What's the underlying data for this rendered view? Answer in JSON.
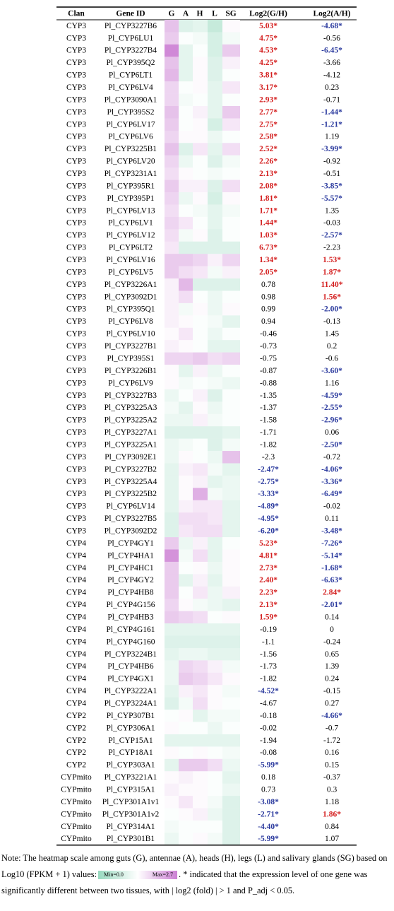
{
  "table": {
    "header": [
      "Clan",
      "Gene ID",
      "G",
      "A",
      "H",
      "L",
      "SG",
      "Log2(G/H)",
      "Log2(A/H)"
    ],
    "rows": [
      [
        "CYP3",
        "Pl_CYP3227B6",
        [
          2.0,
          0.9,
          1.0,
          0.6,
          1.4
        ],
        "5.03*",
        "-4.68*"
      ],
      [
        "CYP3",
        "Pl_CYP6LU1",
        [
          1.9,
          1.3,
          1.2,
          0.8,
          1.2
        ],
        "4.75*",
        "-0.56"
      ],
      [
        "CYP3",
        "Pl_CYP3227B4",
        [
          2.6,
          1.0,
          1.3,
          0.8,
          1.9
        ],
        "4.53*",
        "-6.45*"
      ],
      [
        "CYP3",
        "Pl_CYP395Q2",
        [
          2.0,
          1.0,
          1.4,
          0.9,
          1.5
        ],
        "4.25*",
        "-3.66"
      ],
      [
        "CYP3",
        "Pl_CYP6LT1",
        [
          2.1,
          1.0,
          1.4,
          0.9,
          1.3
        ],
        "3.81*",
        "-4.12"
      ],
      [
        "CYP3",
        "Pl_CYP6LV4",
        [
          1.8,
          1.3,
          1.4,
          1.0,
          1.6
        ],
        "3.17*",
        "0.23"
      ],
      [
        "CYP3",
        "Pl_CYP3090A1",
        [
          1.8,
          1.2,
          1.3,
          1.0,
          1.3
        ],
        "2.93*",
        "-0.71"
      ],
      [
        "CYP3",
        "Pl_CYP395S2",
        [
          2.0,
          1.3,
          1.5,
          1.0,
          1.9
        ],
        "2.77*",
        "-1.44*"
      ],
      [
        "CYP3",
        "Pl_CYP6LV17",
        [
          1.9,
          1.3,
          1.4,
          0.8,
          1.6
        ],
        "2.75*",
        "-1.21*"
      ],
      [
        "CYP3",
        "Pl_CYP6LV6",
        [
          1.8,
          1.4,
          1.4,
          1.1,
          1.3
        ],
        "2.58*",
        "1.19"
      ],
      [
        "CYP3",
        "Pl_CYP3225B1",
        [
          2.0,
          0.9,
          1.6,
          1.0,
          1.7
        ],
        "2.52*",
        "-3.99*"
      ],
      [
        "CYP3",
        "Pl_CYP6LV20",
        [
          1.8,
          1.1,
          1.3,
          0.9,
          1.2
        ],
        "2.26*",
        "-0.92"
      ],
      [
        "CYP3",
        "Pl_CYP3231A1",
        [
          1.7,
          1.4,
          1.3,
          1.2,
          1.3
        ],
        "2.13*",
        "-0.51"
      ],
      [
        "CYP3",
        "Pl_CYP395R1",
        [
          1.9,
          1.5,
          1.5,
          0.9,
          1.7
        ],
        "2.08*",
        "-3.85*"
      ],
      [
        "CYP3",
        "Pl_CYP395P1",
        [
          1.8,
          1.1,
          1.4,
          0.8,
          1.4
        ],
        "1.81*",
        "-5.57*"
      ],
      [
        "CYP3",
        "Pl_CYP6LV13",
        [
          1.7,
          1.3,
          1.2,
          1.0,
          1.2
        ],
        "1.71*",
        "1.35"
      ],
      [
        "CYP3",
        "Pl_CYP6LV1",
        [
          1.8,
          1.6,
          1.3,
          1.0,
          1.3
        ],
        "1.44*",
        "-0.03"
      ],
      [
        "CYP3",
        "Pl_CYP6LV12",
        [
          1.7,
          1.2,
          1.4,
          0.9,
          1.3
        ],
        "1.03*",
        "-2.57*"
      ],
      [
        "CYP3",
        "Pl_CYP6LT2",
        [
          1.6,
          0.9,
          0.9,
          0.9,
          0.9
        ],
        "6.73*",
        "-2.23"
      ],
      [
        "CYP3",
        "Pl_CYP6LV16",
        [
          1.9,
          1.9,
          1.8,
          1.5,
          1.8
        ],
        "1.34*",
        "1.53*"
      ],
      [
        "CYP3",
        "Pl_CYP6LV5",
        [
          1.9,
          1.7,
          1.6,
          1.2,
          1.5
        ],
        "2.05*",
        "1.87*"
      ],
      [
        "CYP3",
        "Pl_CYP3226A1",
        [
          1.5,
          2.1,
          0.9,
          0.9,
          0.9
        ],
        "0.78",
        "11.40*"
      ],
      [
        "CYP3",
        "Pl_CYP3092D1",
        [
          1.5,
          1.7,
          1.3,
          1.1,
          1.3
        ],
        "0.98",
        "1.56*"
      ],
      [
        "CYP3",
        "Pl_CYP395Q1",
        [
          1.5,
          1.2,
          1.4,
          1.1,
          1.4
        ],
        "0.99",
        "-2.00*"
      ],
      [
        "CYP3",
        "Pl_CYP6LV8",
        [
          1.5,
          1.4,
          1.3,
          1.2,
          1.0
        ],
        "0.94",
        "-0.13"
      ],
      [
        "CYP3",
        "Pl_CYP6LV10",
        [
          1.4,
          1.6,
          1.3,
          1.1,
          1.3
        ],
        "-0.46",
        "1.45"
      ],
      [
        "CYP3",
        "Pl_CYP3227B1",
        [
          1.5,
          1.4,
          1.3,
          1.0,
          1.0
        ],
        "-0.73",
        "0.2"
      ],
      [
        "CYP3",
        "Pl_CYP395S1",
        [
          1.8,
          1.8,
          1.9,
          1.7,
          1.8
        ],
        "-0.75",
        "-0.6"
      ],
      [
        "CYP3",
        "Pl_CYP3226B1",
        [
          1.4,
          1.0,
          1.5,
          1.1,
          1.3
        ],
        "-0.87",
        "-3.60*"
      ],
      [
        "CYP3",
        "Pl_CYP6LV9",
        [
          1.4,
          1.2,
          1.3,
          1.2,
          1.1
        ],
        "-0.88",
        "1.16"
      ],
      [
        "CYP3",
        "Pl_CYP3227B3",
        [
          1.1,
          1.3,
          1.5,
          0.9,
          1.3
        ],
        "-1.35",
        "-4.59*"
      ],
      [
        "CYP3",
        "Pl_CYP3225A3",
        [
          1.2,
          1.0,
          1.4,
          1.1,
          1.3
        ],
        "-1.37",
        "-2.55*"
      ],
      [
        "CYP3",
        "Pl_CYP3225A2",
        [
          1.1,
          1.1,
          1.5,
          1.2,
          1.3
        ],
        "-1.58",
        "-2.96*"
      ],
      [
        "CYP3",
        "Pl_CYP3227A1",
        [
          0.9,
          0.9,
          0.9,
          0.9,
          1.0
        ],
        "-1.71",
        "0.06"
      ],
      [
        "CYP3",
        "Pl_CYP3225A1",
        [
          1.1,
          1.2,
          1.3,
          0.9,
          1.2
        ],
        "-1.82",
        "-2.50*"
      ],
      [
        "CYP3",
        "Pl_CYP3092E1",
        [
          1.1,
          1.4,
          1.3,
          1.1,
          2.0
        ],
        "-2.3",
        "-0.72"
      ],
      [
        "CYP3",
        "Pl_CYP3227B2",
        [
          1.0,
          1.5,
          1.6,
          1.2,
          1.0
        ],
        "-2.47*",
        "-4.06*"
      ],
      [
        "CYP3",
        "Pl_CYP3225A4",
        [
          1.0,
          1.4,
          1.5,
          1.0,
          1.1
        ],
        "-2.75*",
        "-3.36*"
      ],
      [
        "CYP3",
        "Pl_CYP3225B2",
        [
          1.0,
          1.4,
          2.2,
          1.2,
          1.1
        ],
        "-3.33*",
        "-6.49*"
      ],
      [
        "CYP3",
        "Pl_CYP6LV14",
        [
          1.0,
          1.5,
          1.6,
          1.6,
          1.0
        ],
        "-4.89*",
        "-0.02"
      ],
      [
        "CYP3",
        "Pl_CYP3227B5",
        [
          0.9,
          1.7,
          1.7,
          1.6,
          1.0
        ],
        "-4.95*",
        "0.11"
      ],
      [
        "CYP3",
        "Pl_CYP3092D2",
        [
          0.9,
          1.6,
          1.7,
          1.7,
          1.0
        ],
        "-6.20*",
        "-3.48*"
      ],
      [
        "CYP4",
        "Pl_CYP4GY1",
        [
          1.9,
          1.1,
          1.5,
          1.0,
          1.3
        ],
        "5.23*",
        "-7.26*"
      ],
      [
        "CYP4",
        "Pl_CYP4HA1",
        [
          2.5,
          1.2,
          1.7,
          1.0,
          1.4
        ],
        "4.81*",
        "-5.14*"
      ],
      [
        "CYP4",
        "Pl_CYP4HC1",
        [
          1.9,
          1.3,
          1.4,
          1.1,
          1.4
        ],
        "2.73*",
        "-1.68*"
      ],
      [
        "CYP4",
        "Pl_CYP4GY2",
        [
          1.9,
          1.0,
          1.5,
          1.0,
          1.4
        ],
        "2.40*",
        "-6.63*"
      ],
      [
        "CYP4",
        "Pl_CYP4HB8",
        [
          1.9,
          1.3,
          1.6,
          1.1,
          1.5
        ],
        "2.23*",
        "2.84*"
      ],
      [
        "CYP4",
        "Pl_CYP4G156",
        [
          1.8,
          1.4,
          1.2,
          1.1,
          1.0
        ],
        "2.13*",
        "-2.01*"
      ],
      [
        "CYP4",
        "Pl_CYP4HB3",
        [
          1.9,
          1.8,
          1.7,
          1.3,
          1.4
        ],
        "1.59*",
        "0.14"
      ],
      [
        "CYP4",
        "Pl_CYP4G161",
        [
          1.0,
          1.0,
          1.0,
          1.0,
          1.0
        ],
        "-0.19",
        "0"
      ],
      [
        "CYP4",
        "Pl_CYP4G160",
        [
          0.9,
          0.9,
          0.9,
          0.9,
          0.9
        ],
        "-1.1",
        "-0.24"
      ],
      [
        "CYP4",
        "Pl_CYP3224B1",
        [
          1.0,
          1.1,
          1.1,
          1.0,
          1.0
        ],
        "-1.56",
        "0.65"
      ],
      [
        "CYP4",
        "Pl_CYP4HB6",
        [
          1.1,
          1.8,
          1.7,
          1.5,
          1.2
        ],
        "-1.73",
        "1.39"
      ],
      [
        "CYP4",
        "Pl_CYP4GX1",
        [
          1.1,
          1.9,
          1.8,
          1.6,
          1.4
        ],
        "-1.82",
        "0.24"
      ],
      [
        "CYP4",
        "Pl_CYP3222A1",
        [
          1.0,
          1.5,
          1.6,
          1.4,
          1.2
        ],
        "-4.52*",
        "-0.15"
      ],
      [
        "CYP4",
        "Pl_CYP3224A1",
        [
          0.9,
          1.2,
          1.7,
          1.4,
          1.3
        ],
        "-4.67",
        "0.27"
      ],
      [
        "CYP2",
        "Pl_CYP307B1",
        [
          1.3,
          1.4,
          1.0,
          1.2,
          1.2
        ],
        "-0.18",
        "-4.66*"
      ],
      [
        "CYP2",
        "Pl_CYP306A1",
        [
          1.4,
          1.3,
          1.3,
          1.1,
          1.3
        ],
        "-0.02",
        "-0.7"
      ],
      [
        "CYP2",
        "Pl_CYP15A1",
        [
          1.0,
          1.0,
          1.0,
          1.0,
          1.0
        ],
        "-1.94",
        "-1.72"
      ],
      [
        "CYP2",
        "Pl_CYP18A1",
        [
          1.4,
          1.3,
          1.4,
          1.3,
          1.2
        ],
        "-0.08",
        "0.16"
      ],
      [
        "CYP2",
        "Pl_CYP303A1",
        [
          1.0,
          1.9,
          1.9,
          1.7,
          1.1
        ],
        "-5.99*",
        "0.15"
      ],
      [
        "CYPmito",
        "Pl_CYP3221A1",
        [
          1.4,
          1.5,
          1.4,
          1.3,
          1.0
        ],
        "0.18",
        "-0.37"
      ],
      [
        "CYPmito",
        "Pl_CYP315A1",
        [
          1.5,
          1.4,
          1.4,
          1.3,
          1.1
        ],
        "0.73",
        "0.3"
      ],
      [
        "CYPmito",
        "Pl_CYP301A1v1",
        [
          1.4,
          1.6,
          1.4,
          1.2,
          0.9
        ],
        "-3.08*",
        "1.18"
      ],
      [
        "CYPmito",
        "Pl_CYP301A1v2",
        [
          1.3,
          1.4,
          1.5,
          1.1,
          0.9
        ],
        "-2.71*",
        "1.86*"
      ],
      [
        "CYPmito",
        "Pl_CYP314A1",
        [
          1.2,
          1.3,
          1.3,
          1.3,
          0.9
        ],
        "-4.40*",
        "0.84"
      ],
      [
        "CYPmito",
        "Pl_CYP301B1",
        [
          1.1,
          1.3,
          1.4,
          1.2,
          0.9
        ],
        "-5.99*",
        "1.07"
      ]
    ]
  },
  "heatmap": {
    "min": 0,
    "max": 2.7,
    "min_label": "Min=0.0",
    "max_label": "Max=2.7",
    "colors": [
      "#98d9bf",
      "#ffffff",
      "#cc80d4"
    ],
    "up_color": "#d42020",
    "down_color": "#2b3a9e"
  },
  "note": {
    "part1": "Note: The  heatmap scale among guts (G), antennae (A), heads (H), legs (L) and salivary glands (SG) based on Log10 (FPKM + 1) values:",
    "part2": ". * indicated that the expression level of one gene was significantly different between two tissues, with | log2 (fold) | > 1 and P_adj < 0.05."
  }
}
